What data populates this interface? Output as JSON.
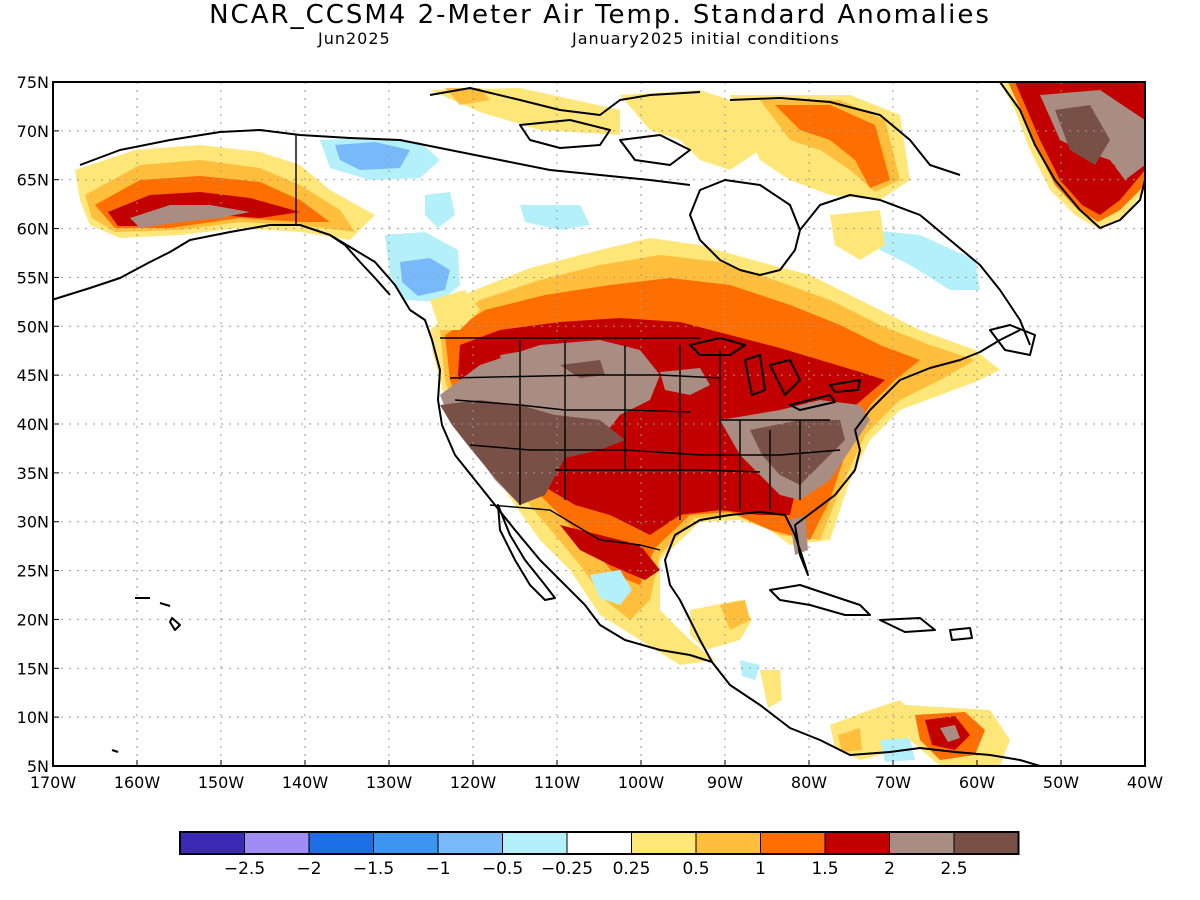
{
  "header": {
    "title": "NCAR_CCSM4 2-Meter Air Temp. Standard Anomalies",
    "month": "Jun2025",
    "init": "January2025 initial conditions"
  },
  "map": {
    "lat_labels": [
      "75N",
      "70N",
      "65N",
      "60N",
      "55N",
      "50N",
      "45N",
      "40N",
      "35N",
      "30N",
      "25N",
      "20N",
      "15N",
      "10N",
      "5N"
    ],
    "lon_labels": [
      "170W",
      "160W",
      "150W",
      "140W",
      "130W",
      "120W",
      "110W",
      "100W",
      "90W",
      "80W",
      "70W",
      "60W",
      "50W",
      "40W"
    ],
    "lat_range": [
      5,
      75
    ],
    "lon_range": [
      -170,
      -40
    ]
  },
  "colorbar": {
    "colors": [
      "#3e29b4",
      "#a08cf5",
      "#1e6ee6",
      "#3c96f0",
      "#78b9fa",
      "#b4f0fa",
      "#ffffff",
      "#ffe678",
      "#ffbe3c",
      "#ff6e00",
      "#c30000",
      "#a98c82",
      "#785046"
    ],
    "labels": [
      "−2.5",
      "−2",
      "−1.5",
      "−1",
      "−0.5",
      "−0.25",
      "0.25",
      "0.5",
      "1",
      "1.5",
      "2",
      "2.5"
    ]
  }
}
